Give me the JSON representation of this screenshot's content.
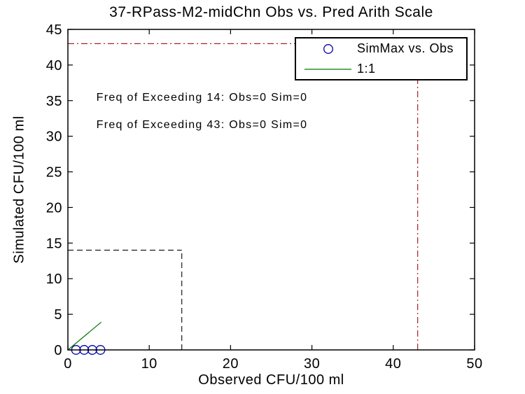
{
  "figure": {
    "background": "#ffffff"
  },
  "chart_data": {
    "type": "scatter",
    "title": "37-RPass-M2-midChn Obs vs. Pred Arith Scale",
    "xlabel": "Observed CFU/100 ml",
    "ylabel": "Simulated CFU/100 ml",
    "xlim": [
      0,
      50
    ],
    "ylim": [
      0,
      45
    ],
    "xticks": [
      0,
      10,
      20,
      30,
      40,
      50
    ],
    "yticks": [
      0,
      5,
      10,
      15,
      20,
      25,
      30,
      35,
      40,
      45
    ],
    "grid": false,
    "box": true,
    "axis_color": "#000000",
    "series": [
      {
        "name": "SimMax vs. Obs",
        "type": "scatter",
        "marker": "circle",
        "color": "#0000aa",
        "points": [
          [
            1,
            0
          ],
          [
            2,
            0
          ],
          [
            3,
            0
          ],
          [
            4,
            0
          ]
        ]
      },
      {
        "name": "1:1",
        "type": "line",
        "color": "#007700",
        "points": [
          [
            0,
            0
          ],
          [
            4.1,
            3.9
          ]
        ]
      }
    ],
    "reference_lines": [
      {
        "name": "threshold-43-horizontal",
        "color": "#aa2222",
        "dash": "dashdot",
        "from": [
          0,
          43
        ],
        "to": [
          43,
          43
        ]
      },
      {
        "name": "threshold-43-vertical",
        "color": "#aa2222",
        "dash": "dashdot",
        "from": [
          43,
          0
        ],
        "to": [
          43,
          43
        ]
      },
      {
        "name": "threshold-14-horizontal",
        "color": "#1a1a1a",
        "dash": "dash",
        "from": [
          0,
          14
        ],
        "to": [
          14,
          14
        ]
      },
      {
        "name": "threshold-14-vertical",
        "color": "#1a1a1a",
        "dash": "dash",
        "from": [
          14,
          0
        ],
        "to": [
          14,
          14
        ]
      }
    ],
    "annotations": [
      {
        "text": "Freq of Exceeding 14: Obs=0 Sim=0",
        "x": 3.5,
        "y": 35.4
      },
      {
        "text": "Freq of Exceeding 43: Obs=0 Sim=0",
        "x": 3.5,
        "y": 31.6
      }
    ],
    "legend": {
      "position": "top-right",
      "entries": [
        {
          "label": "SimMax vs. Obs",
          "glyph": "circle",
          "color": "#0000aa"
        },
        {
          "label": "1:1",
          "glyph": "line",
          "color": "#007700"
        }
      ]
    }
  }
}
